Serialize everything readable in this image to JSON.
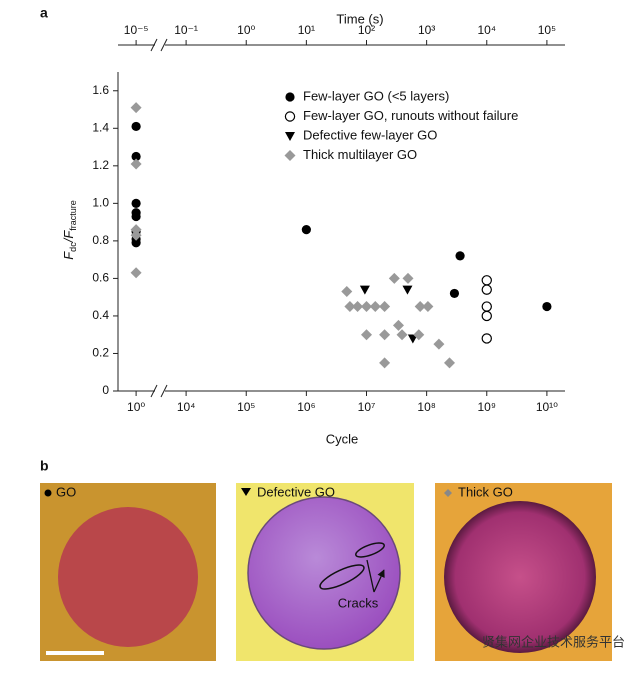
{
  "panel_a": "a",
  "panel_b": "b",
  "chart_data": {
    "type": "scatter",
    "xlabel": "Cycle",
    "x2label": "Time (s)",
    "ylabel": [
      "F",
      "dc",
      "/F",
      "fracture"
    ],
    "xscale": "log",
    "xlim": [
      0.5,
      20000000000
    ],
    "xbreak": [
      1,
      10000
    ],
    "xticks": [
      {
        "value": 1,
        "label": "10⁰"
      },
      {
        "value": 10000,
        "label": "10⁴"
      },
      {
        "value": 100000,
        "label": "10⁵"
      },
      {
        "value": 1000000,
        "label": "10⁶"
      },
      {
        "value": 10000000,
        "label": "10⁷"
      },
      {
        "value": 100000000,
        "label": "10⁸"
      },
      {
        "value": 1000000000,
        "label": "10⁹"
      },
      {
        "value": 10000000000,
        "label": "10¹⁰"
      }
    ],
    "x2lim": [
      5e-06,
      200000
    ],
    "x2break": [
      1e-05,
      0.1
    ],
    "x2ticks": [
      {
        "value": 1e-05,
        "label": "10⁻⁵"
      },
      {
        "value": 0.1,
        "label": "10⁻¹"
      },
      {
        "value": 1,
        "label": "10⁰"
      },
      {
        "value": 10,
        "label": "10¹"
      },
      {
        "value": 100,
        "label": "10²"
      },
      {
        "value": 1000,
        "label": "10³"
      },
      {
        "value": 10000,
        "label": "10⁴"
      },
      {
        "value": 100000,
        "label": "10⁵"
      }
    ],
    "ylim": [
      0,
      1.7
    ],
    "yticks": [
      0,
      0.2,
      0.4,
      0.6,
      0.8,
      {
        "value": 1,
        "label": "1.0"
      },
      1.2,
      1.4,
      1.6
    ],
    "legend": "upper right",
    "series": [
      {
        "name": "Few-layer GO (<5 layers)",
        "marker": "filled-circle",
        "color": "#000000",
        "x": [
          1,
          1,
          1,
          1,
          1,
          1,
          1,
          1,
          1000000,
          290000000,
          360000000,
          10000000000
        ],
        "values": [
          1.41,
          1.25,
          1.0,
          0.95,
          0.93,
          0.85,
          0.81,
          0.79,
          0.86,
          0.52,
          0.72,
          0.45
        ]
      },
      {
        "name": "Few-layer GO, runouts without failure",
        "marker": "open-circle",
        "color": "#000000",
        "x": [
          1000000000,
          1000000000,
          1000000000,
          1000000000,
          1000000000
        ],
        "values": [
          0.59,
          0.54,
          0.45,
          0.4,
          0.28
        ]
      },
      {
        "name": "Defective few-layer GO",
        "marker": "triangle-down",
        "color": "#000000",
        "x": [
          9400000,
          48000000,
          59000000
        ],
        "values": [
          0.54,
          0.54,
          0.28
        ]
      },
      {
        "name": "Thick multilayer GO",
        "marker": "diamond",
        "color": "#999999",
        "x": [
          1,
          1,
          1,
          1,
          1,
          4700000,
          5300000,
          7100000,
          10000000,
          14000000,
          20000000,
          29000000,
          49000000,
          34000000,
          10000000,
          20000000,
          20000000,
          39000000,
          78000000,
          105000000,
          74000000,
          160000000,
          240000000
        ],
        "values": [
          1.51,
          1.21,
          0.86,
          0.83,
          0.63,
          0.53,
          0.45,
          0.45,
          0.45,
          0.45,
          0.45,
          0.6,
          0.6,
          0.35,
          0.3,
          0.3,
          0.15,
          0.3,
          0.45,
          0.45,
          0.3,
          0.25,
          0.15
        ]
      }
    ]
  },
  "images": [
    {
      "label": "GO"
    },
    {
      "label": "Defective GO",
      "annotation": "Cracks"
    },
    {
      "label": "Thick GO"
    }
  ],
  "watermark": "贤集网企业技术服务平台"
}
